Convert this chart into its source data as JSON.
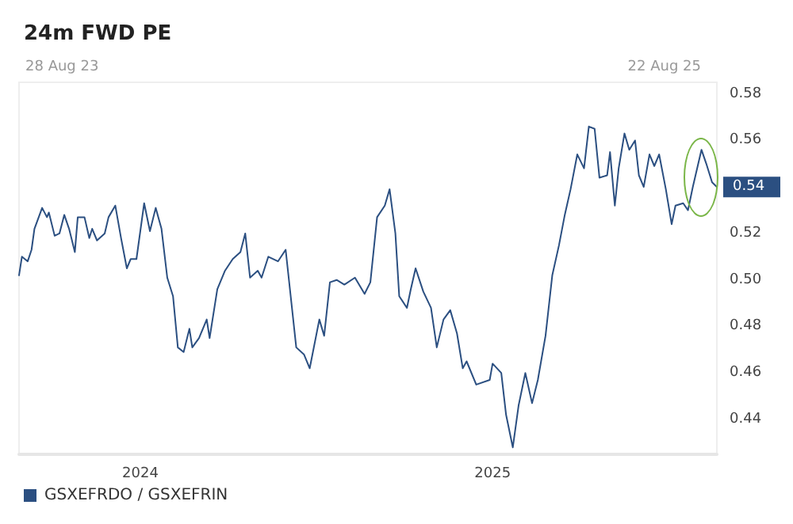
{
  "chart_data": {
    "type": "line",
    "title": "24m FWD PE",
    "annotations": [
      "28 Aug 23",
      "22 Aug 25",
      {
        "text": "0.54",
        "x": "2025-08-22",
        "y": 0.54
      }
    ],
    "xlim": [
      "2023-08-28",
      "2025-08-22"
    ],
    "xticks": [
      {
        "value": "2024-01-01",
        "label": "2024"
      },
      {
        "value": "2025-01-01",
        "label": "2025"
      }
    ],
    "ylim": [
      0.425,
      0.585
    ],
    "yticks": [
      0.44,
      0.46,
      0.48,
      {
        "value": 0.5,
        "label": "0.50"
      },
      0.52,
      0.56,
      0.58
    ],
    "grid": false,
    "legend": "bottom left",
    "marker": "none",
    "line_style": "solid",
    "series": [
      {
        "name": "GSXEFRDO / GSXEFRIN",
        "color": "#2b4f81",
        "x": [
          "2023-08-28",
          "2023-08-31",
          "2023-09-06",
          "2023-09-10",
          "2023-09-13",
          "2023-09-21",
          "2023-09-26",
          "2023-09-28",
          "2023-10-04",
          "2023-10-09",
          "2023-10-14",
          "2023-10-19",
          "2023-10-25",
          "2023-10-28",
          "2023-11-04",
          "2023-11-09",
          "2023-11-12",
          "2023-11-17",
          "2023-11-25",
          "2023-11-29",
          "2023-12-06",
          "2023-12-12",
          "2023-12-18",
          "2023-12-22",
          "2023-12-28",
          "2024-01-05",
          "2024-01-11",
          "2024-01-17",
          "2024-01-23",
          "2024-01-29",
          "2024-02-04",
          "2024-02-09",
          "2024-02-15",
          "2024-02-21",
          "2024-02-24",
          "2024-03-02",
          "2024-03-10",
          "2024-03-13",
          "2024-03-21",
          "2024-03-29",
          "2024-04-06",
          "2024-04-14",
          "2024-04-19",
          "2024-04-24",
          "2024-05-02",
          "2024-05-06",
          "2024-05-13",
          "2024-05-23",
          "2024-05-31",
          "2024-06-11",
          "2024-06-19",
          "2024-06-25",
          "2024-07-05",
          "2024-07-10",
          "2024-07-16",
          "2024-07-23",
          "2024-07-31",
          "2024-08-11",
          "2024-08-21",
          "2024-08-27",
          "2024-09-03",
          "2024-09-11",
          "2024-09-16",
          "2024-09-22",
          "2024-09-26",
          "2024-10-04",
          "2024-10-08",
          "2024-10-13",
          "2024-10-21",
          "2024-10-29",
          "2024-11-04",
          "2024-11-11",
          "2024-11-18",
          "2024-11-25",
          "2024-12-01",
          "2024-12-05",
          "2024-12-15",
          "2024-12-29",
          "2025-01-01",
          "2025-01-10",
          "2025-01-15",
          "2025-01-22",
          "2025-01-28",
          "2025-02-04",
          "2025-02-11",
          "2025-02-17",
          "2025-02-25",
          "2025-03-04",
          "2025-03-11",
          "2025-03-17",
          "2025-03-23",
          "2025-03-30",
          "2025-04-06",
          "2025-04-11",
          "2025-04-17",
          "2025-04-22",
          "2025-04-30",
          "2025-05-03",
          "2025-05-08",
          "2025-05-12",
          "2025-05-18",
          "2025-05-23",
          "2025-05-29",
          "2025-06-02",
          "2025-06-07",
          "2025-06-13",
          "2025-06-18",
          "2025-06-23",
          "2025-06-30",
          "2025-07-06",
          "2025-07-10",
          "2025-07-18",
          "2025-07-23",
          "2025-07-28",
          "2025-08-06",
          "2025-08-11",
          "2025-08-17",
          "2025-08-22"
        ],
        "values": [
          0.502,
          0.51,
          0.508,
          0.513,
          0.522,
          0.531,
          0.527,
          0.529,
          0.519,
          0.52,
          0.528,
          0.522,
          0.512,
          0.527,
          0.527,
          0.518,
          0.522,
          0.517,
          0.52,
          0.527,
          0.532,
          0.518,
          0.505,
          0.509,
          0.509,
          0.533,
          0.521,
          0.531,
          0.522,
          0.501,
          0.493,
          0.471,
          0.469,
          0.479,
          0.471,
          0.475,
          0.483,
          0.475,
          0.496,
          0.504,
          0.509,
          0.512,
          0.52,
          0.501,
          0.504,
          0.501,
          0.51,
          0.508,
          0.513,
          0.471,
          0.468,
          0.462,
          0.483,
          0.476,
          0.499,
          0.5,
          0.498,
          0.501,
          0.494,
          0.499,
          0.527,
          0.532,
          0.539,
          0.52,
          0.493,
          0.488,
          0.496,
          0.505,
          0.495,
          0.488,
          0.471,
          0.483,
          0.487,
          0.477,
          0.462,
          0.465,
          0.455,
          0.457,
          0.464,
          0.46,
          0.442,
          0.428,
          0.446,
          0.46,
          0.447,
          0.457,
          0.476,
          0.502,
          0.515,
          0.528,
          0.539,
          0.554,
          0.548,
          0.566,
          0.565,
          0.544,
          0.545,
          0.555,
          0.532,
          0.548,
          0.563,
          0.556,
          0.56,
          0.545,
          0.54,
          0.554,
          0.549,
          0.554,
          0.539,
          0.524,
          0.532,
          0.533,
          0.53,
          0.54,
          0.556,
          0.55,
          0.542,
          0.54
        ]
      }
    ]
  }
}
